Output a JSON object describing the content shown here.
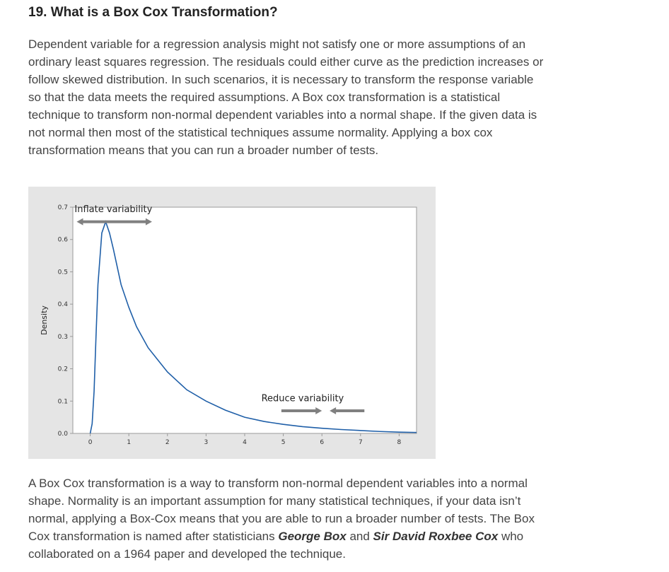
{
  "heading": "19. What is a Box Cox Transformation?",
  "paragraph1": "Dependent variable for a regression analysis might not satisfy one or more assumptions of an ordinary least squares regression. The residuals could either curve as the prediction increases or follow skewed distribution. In such scenarios, it is necessary to transform the response variable so that the data meets the required assumptions. A Box cox transformation is a statistical technique to transform non-normal dependent variables into a normal shape. If the given data is not normal then most of the statistical techniques assume normality. Applying a box cox transformation means that you can run a broader number of tests.",
  "paragraph2": {
    "text_before": "A Box Cox transformation is a way to transform non-normal dependent variables into a normal shape. Normality is an important assumption for many statistical techniques, if your data isn’t normal, applying a Box-Cox means that you are able to run a broader number of tests. The Box Cox transformation is named after statisticians ",
    "name1": "George Box",
    "text_middle": " and ",
    "name2": "Sir David Roxbee Cox",
    "text_after": " who collaborated on a 1964 paper and developed the technique."
  },
  "chart_data": {
    "type": "line",
    "title": "",
    "xlabel": "",
    "ylabel": "Density",
    "xlim": [
      -0.45,
      8.45
    ],
    "ylim": [
      0.0,
      0.7
    ],
    "x_ticks": [
      "0",
      "1",
      "2",
      "3",
      "4",
      "5",
      "6",
      "7",
      "8"
    ],
    "y_ticks": [
      "0.0",
      "0.1",
      "0.2",
      "0.3",
      "0.4",
      "0.5",
      "0.6",
      "0.7"
    ],
    "grid": false,
    "series": [
      {
        "color": "#1f5fa8",
        "x": [
          0.0,
          0.05,
          0.1,
          0.15,
          0.2,
          0.3,
          0.4,
          0.5,
          0.6,
          0.7,
          0.8,
          1.0,
          1.2,
          1.5,
          2.0,
          2.5,
          3.0,
          3.5,
          4.0,
          4.5,
          5.0,
          5.5,
          6.0,
          6.5,
          7.0,
          7.5,
          8.0,
          8.45
        ],
        "y": [
          0.0,
          0.03,
          0.13,
          0.3,
          0.46,
          0.62,
          0.655,
          0.62,
          0.57,
          0.515,
          0.46,
          0.39,
          0.33,
          0.265,
          0.19,
          0.135,
          0.1,
          0.072,
          0.05,
          0.037,
          0.028,
          0.021,
          0.016,
          0.012,
          0.009,
          0.006,
          0.004,
          0.003
        ]
      }
    ],
    "annotations": [
      {
        "text": "Inflate variability",
        "x": 0.6,
        "y": 0.685
      },
      {
        "text": "Reduce variability",
        "x": 5.5,
        "y": 0.1
      }
    ],
    "arrows": [
      {
        "from": [
          0.4,
          0.655
        ],
        "to": [
          -0.35,
          0.655
        ]
      },
      {
        "from": [
          0.4,
          0.655
        ],
        "to": [
          1.6,
          0.655
        ]
      },
      {
        "from": [
          4.95,
          0.07
        ],
        "to": [
          6.0,
          0.07
        ]
      },
      {
        "from": [
          7.1,
          0.07
        ],
        "to": [
          6.2,
          0.07
        ]
      }
    ],
    "colors": {
      "line": "#1f5fa8",
      "arrow": "#808080",
      "frame_bg": "#e5e5e5",
      "plot_bg": "#ffffff"
    }
  }
}
